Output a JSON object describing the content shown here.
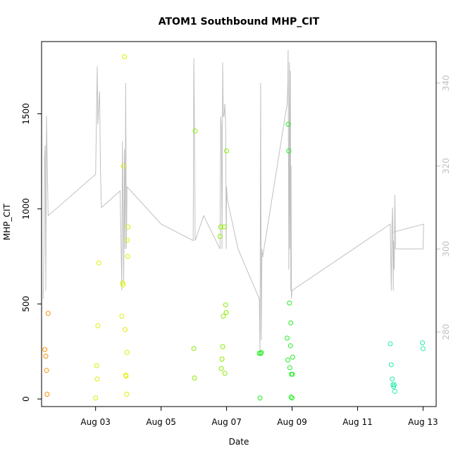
{
  "chart_data": {
    "type": "scatter",
    "title": "ATOM1 Southbound MHP_CIT",
    "xlabel": "Date",
    "ylabel": "MHP_CIT",
    "xlim": [
      1.35,
      13.4
    ],
    "ylim": [
      -40,
      1880
    ],
    "y2lim": [
      262,
      350
    ],
    "x_ticks": [
      {
        "value": 3,
        "label": "Aug 03"
      },
      {
        "value": 5,
        "label": "Aug 05"
      },
      {
        "value": 7,
        "label": "Aug 07"
      },
      {
        "value": 9,
        "label": "Aug 09"
      },
      {
        "value": 11,
        "label": "Aug 11"
      },
      {
        "value": 13,
        "label": "Aug 13"
      }
    ],
    "y_ticks": [
      {
        "value": 0,
        "label": "0"
      },
      {
        "value": 500,
        "label": "500"
      },
      {
        "value": 1000,
        "label": "1000"
      },
      {
        "value": 1500,
        "label": "1500"
      }
    ],
    "y2_ticks": [
      {
        "value": 280,
        "label": "280"
      },
      {
        "value": 300,
        "label": "300"
      },
      {
        "value": 320,
        "label": "320"
      },
      {
        "value": 340,
        "label": "340"
      }
    ],
    "series": [
      {
        "color": "#ff8c00",
        "points": [
          [
            1.45,
            260
          ],
          [
            1.48,
            225
          ],
          [
            1.5,
            150
          ],
          [
            1.52,
            25
          ],
          [
            1.55,
            450
          ]
        ]
      },
      {
        "color": "#ddee00",
        "points": [
          [
            3.0,
            5
          ],
          [
            3.03,
            175
          ],
          [
            3.05,
            105
          ],
          [
            3.07,
            385
          ],
          [
            3.1,
            715
          ],
          [
            3.8,
            435
          ],
          [
            3.82,
            610
          ],
          [
            3.84,
            600
          ],
          [
            3.85,
            1225
          ],
          [
            3.88,
            1800
          ],
          [
            3.9,
            365
          ],
          [
            3.92,
            125
          ],
          [
            3.93,
            120
          ],
          [
            3.95,
            25
          ],
          [
            3.96,
            245
          ],
          [
            3.97,
            835
          ],
          [
            3.98,
            750
          ],
          [
            3.99,
            905
          ]
        ]
      },
      {
        "color": "#88ee00",
        "points": [
          [
            6.0,
            265
          ],
          [
            6.02,
            110
          ],
          [
            6.04,
            1410
          ],
          [
            6.8,
            855
          ],
          [
            6.82,
            905
          ],
          [
            6.84,
            160
          ],
          [
            6.86,
            210
          ],
          [
            6.88,
            275
          ],
          [
            6.9,
            435
          ],
          [
            6.92,
            905
          ],
          [
            6.95,
            135
          ],
          [
            6.97,
            495
          ],
          [
            6.99,
            455
          ],
          [
            7.0,
            1305
          ]
        ]
      },
      {
        "color": "#22ee22",
        "points": [
          [
            8.0,
            240
          ],
          [
            8.02,
            5
          ],
          [
            8.04,
            240
          ],
          [
            8.06,
            245
          ],
          [
            8.85,
            320
          ],
          [
            8.87,
            205
          ],
          [
            8.88,
            1445
          ],
          [
            8.9,
            1305
          ],
          [
            8.92,
            505
          ],
          [
            8.93,
            165
          ],
          [
            8.95,
            280
          ],
          [
            8.96,
            400
          ],
          [
            8.97,
            10
          ],
          [
            8.98,
            130
          ],
          [
            9.0,
            5
          ],
          [
            9.01,
            130
          ],
          [
            9.02,
            220
          ]
        ]
      },
      {
        "color": "#22eeaa",
        "points": [
          [
            12.0,
            290
          ],
          [
            12.03,
            180
          ],
          [
            12.06,
            105
          ],
          [
            12.08,
            75
          ],
          [
            12.1,
            65
          ],
          [
            12.12,
            75
          ],
          [
            12.14,
            40
          ],
          [
            12.98,
            295
          ],
          [
            13.0,
            265
          ]
        ]
      }
    ],
    "line2": {
      "color": "#c0c0c0",
      "points": [
        [
          1.4,
          288
        ],
        [
          1.42,
          300
        ],
        [
          1.44,
          322
        ],
        [
          1.46,
          325
        ],
        [
          1.48,
          290
        ],
        [
          1.5,
          332
        ],
        [
          1.52,
          322
        ],
        [
          1.55,
          308
        ],
        [
          3.0,
          318
        ],
        [
          3.05,
          344
        ],
        [
          3.07,
          330
        ],
        [
          3.1,
          335
        ],
        [
          3.12,
          338
        ],
        [
          3.15,
          318
        ],
        [
          3.18,
          310
        ],
        [
          3.75,
          314
        ],
        [
          3.78,
          300
        ],
        [
          3.8,
          290
        ],
        [
          3.82,
          326
        ],
        [
          3.84,
          310
        ],
        [
          3.86,
          292
        ],
        [
          3.88,
          324
        ],
        [
          3.9,
          300
        ],
        [
          3.92,
          340
        ],
        [
          3.94,
          300
        ],
        [
          3.96,
          315
        ],
        [
          5.0,
          306
        ],
        [
          5.98,
          302
        ],
        [
          6.0,
          346
        ],
        [
          6.02,
          330
        ],
        [
          6.04,
          302
        ],
        [
          6.3,
          308
        ],
        [
          6.8,
          300
        ],
        [
          6.82,
          332
        ],
        [
          6.84,
          330
        ],
        [
          6.86,
          300
        ],
        [
          6.88,
          345
        ],
        [
          6.9,
          332
        ],
        [
          6.92,
          332
        ],
        [
          6.95,
          335
        ],
        [
          6.97,
          330
        ],
        [
          6.99,
          300
        ],
        [
          7.0,
          315
        ],
        [
          7.02,
          312
        ],
        [
          7.35,
          300
        ],
        [
          8.0,
          288
        ],
        [
          8.02,
          275
        ],
        [
          8.04,
          340
        ],
        [
          8.06,
          278
        ],
        [
          8.08,
          300
        ],
        [
          8.1,
          298
        ],
        [
          8.85,
          335
        ],
        [
          8.87,
          340
        ],
        [
          8.88,
          348
        ],
        [
          8.9,
          295
        ],
        [
          8.92,
          345
        ],
        [
          8.93,
          300
        ],
        [
          8.95,
          343
        ],
        [
          8.96,
          290
        ],
        [
          8.97,
          320
        ],
        [
          8.98,
          288
        ],
        [
          9.0,
          290
        ],
        [
          12.0,
          306
        ],
        [
          12.03,
          290
        ],
        [
          12.05,
          306
        ],
        [
          12.07,
          310
        ],
        [
          12.09,
          290
        ],
        [
          12.1,
          302
        ],
        [
          12.12,
          295
        ],
        [
          12.14,
          313
        ],
        [
          12.16,
          300
        ],
        [
          13.0,
          300
        ],
        [
          13.02,
          306
        ],
        [
          12.06,
          304
        ]
      ]
    }
  }
}
